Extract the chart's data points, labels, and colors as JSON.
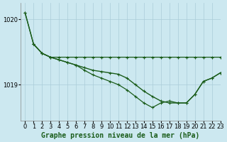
{
  "title": "Graphe pression niveau de la mer (hPa)",
  "background_color": "#cce8f0",
  "grid_color": "#aaccd8",
  "line_color_dark": "#1a5c1a",
  "xlim": [
    -0.5,
    23
  ],
  "ylim": [
    1018.45,
    1020.25
  ],
  "yticks": [
    1019.0,
    1020.0
  ],
  "xticks": [
    0,
    1,
    2,
    3,
    4,
    5,
    6,
    7,
    8,
    9,
    10,
    11,
    12,
    13,
    14,
    15,
    16,
    17,
    18,
    19,
    20,
    21,
    22,
    23
  ],
  "series1_x": [
    0,
    1,
    2,
    3,
    4,
    5,
    6,
    7,
    8,
    9,
    10,
    11,
    12,
    13,
    14,
    15,
    16,
    17,
    18,
    19,
    20,
    21,
    22,
    23
  ],
  "series1_y": [
    1020.1,
    1019.62,
    1019.48,
    1019.42,
    1019.42,
    1019.42,
    1019.42,
    1019.42,
    1019.42,
    1019.42,
    1019.42,
    1019.42,
    1019.42,
    1019.42,
    1019.42,
    1019.42,
    1019.42,
    1019.42,
    1019.42,
    1019.42,
    1019.42,
    1019.42,
    1019.42,
    1019.42
  ],
  "series2_x": [
    0,
    1,
    2,
    3,
    4,
    5,
    6,
    7,
    8,
    9,
    10,
    11,
    12,
    13,
    14,
    15,
    16,
    17,
    18,
    19,
    20,
    21,
    22,
    23
  ],
  "series2_y": [
    1020.1,
    1019.62,
    1019.48,
    1019.42,
    1019.38,
    1019.34,
    1019.3,
    1019.26,
    1019.22,
    1019.2,
    1019.18,
    1019.16,
    1019.1,
    1019.0,
    1018.9,
    1018.82,
    1018.75,
    1018.72,
    1018.72,
    1018.72,
    1018.85,
    1019.05,
    1019.1,
    1019.18
  ],
  "series3_x": [
    1,
    2,
    3,
    4,
    5,
    6,
    7,
    8,
    9,
    10,
    11,
    12,
    13,
    14,
    15,
    16,
    17,
    18,
    19,
    20,
    21,
    22,
    23
  ],
  "series3_y": [
    1019.62,
    1019.48,
    1019.42,
    1019.38,
    1019.34,
    1019.3,
    1019.22,
    1019.15,
    1019.1,
    1019.05,
    1019.0,
    1018.92,
    1018.82,
    1018.72,
    1018.65,
    1018.72,
    1018.75,
    1018.72,
    1018.72,
    1018.85,
    1019.05,
    1019.1,
    1019.18
  ],
  "tick_fontsize": 6,
  "title_fontsize": 7
}
